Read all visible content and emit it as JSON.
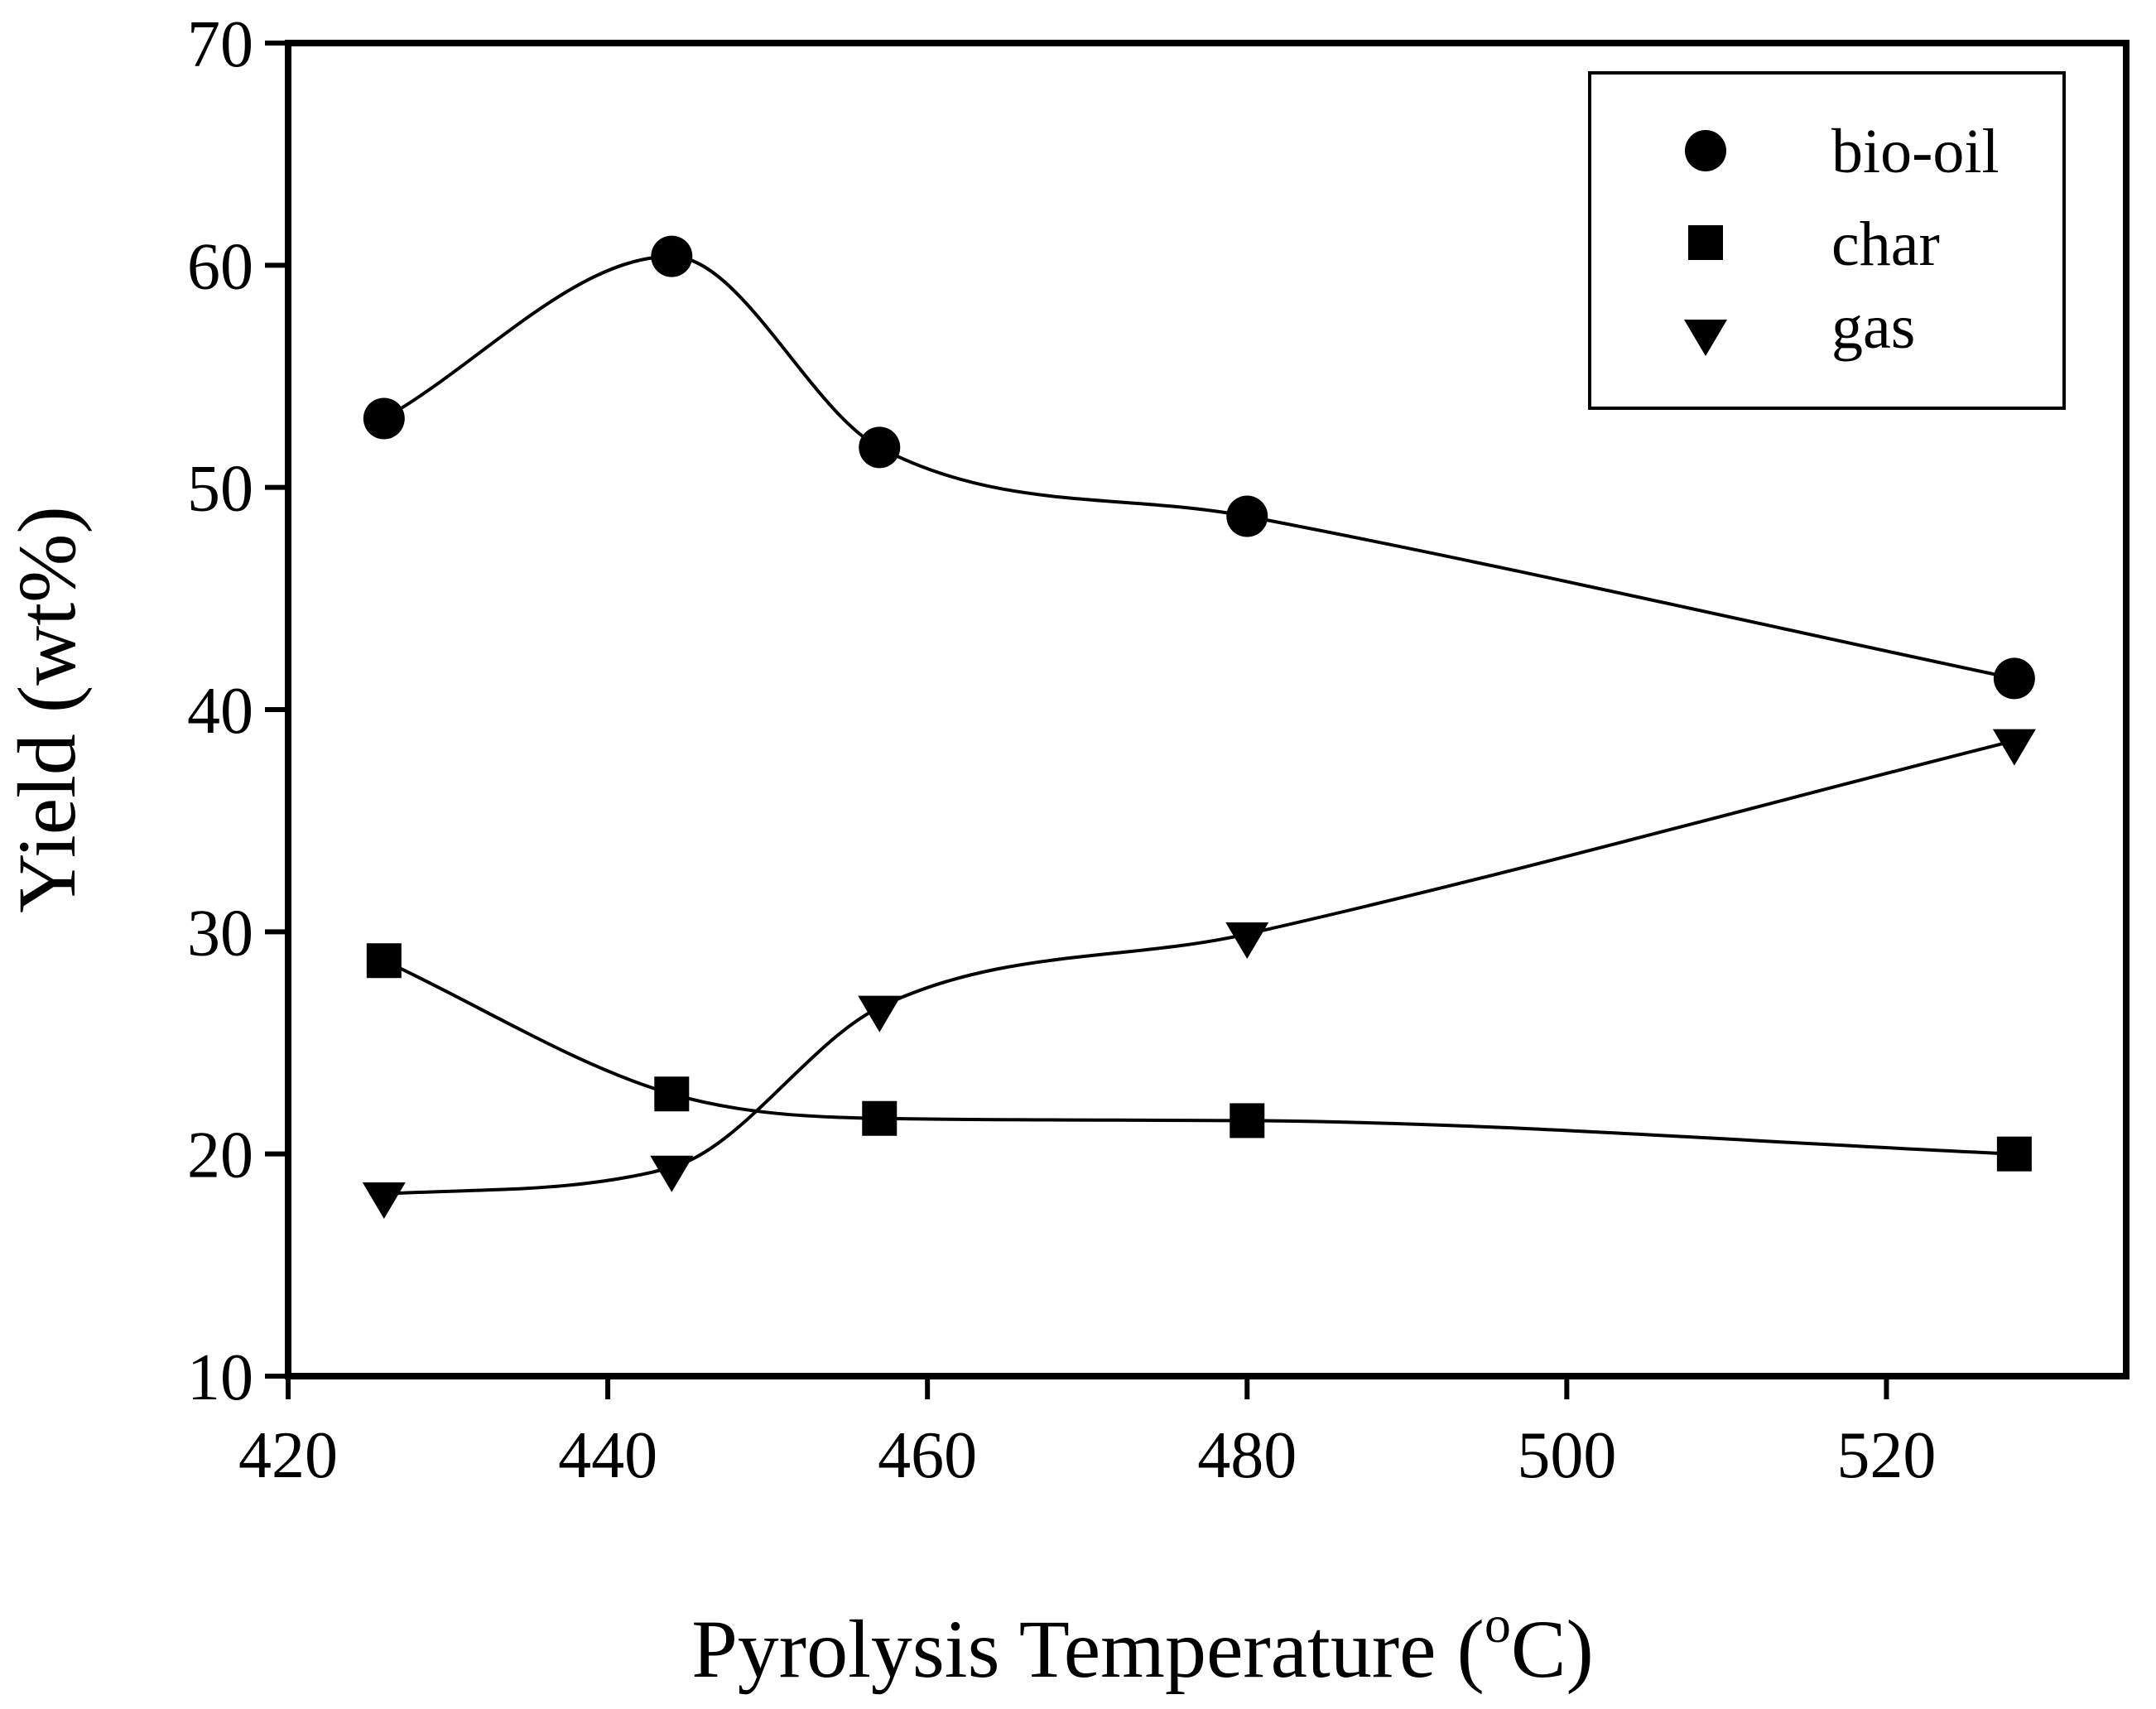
{
  "chart_data": {
    "type": "line",
    "title": "",
    "xlabel": "Pyrolysis Temperature (",
    "xlabel_unit_superscript": "o",
    "xlabel_unit_suffix": "C)",
    "ylabel": "Yield (wt%)",
    "xlim": [
      420,
      535
    ],
    "ylim": [
      10,
      70
    ],
    "xticks": [
      420,
      440,
      460,
      480,
      500,
      520
    ],
    "yticks": [
      10,
      20,
      30,
      40,
      50,
      60,
      70
    ],
    "grid": false,
    "legend_position": "top-right",
    "x": [
      426,
      444,
      457,
      480,
      528
    ],
    "series": [
      {
        "name": "bio-oil",
        "marker": "circle",
        "values": [
          53.1,
          60.4,
          51.8,
          48.7,
          41.4
        ]
      },
      {
        "name": "char",
        "marker": "square",
        "values": [
          28.7,
          22.7,
          21.6,
          21.5,
          20.0
        ]
      },
      {
        "name": "gas",
        "marker": "triangle-down",
        "values": [
          18.2,
          19.4,
          26.6,
          29.9,
          38.6
        ]
      }
    ]
  }
}
